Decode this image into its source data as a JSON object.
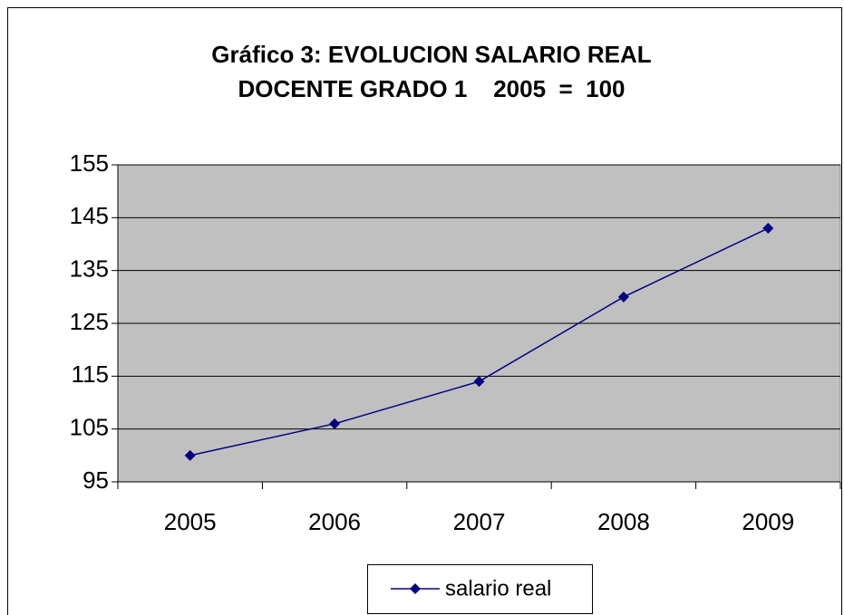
{
  "chart_data": {
    "type": "line",
    "title": [
      "Gráfico 3: EVOLUCION SALARIO REAL",
      "DOCENTE GRADO 1    2005  =  100"
    ],
    "categories": [
      "2005",
      "2006",
      "2007",
      "2008",
      "2009"
    ],
    "series": [
      {
        "name": "salario real",
        "color": "#000080",
        "values": [
          100,
          106,
          114,
          130,
          143
        ]
      }
    ],
    "ylim": [
      95,
      155
    ],
    "yticks": [
      95,
      105,
      115,
      125,
      135,
      145,
      155
    ],
    "grid": true,
    "plot_background": "#c0c0c0",
    "legend": "bottom"
  }
}
